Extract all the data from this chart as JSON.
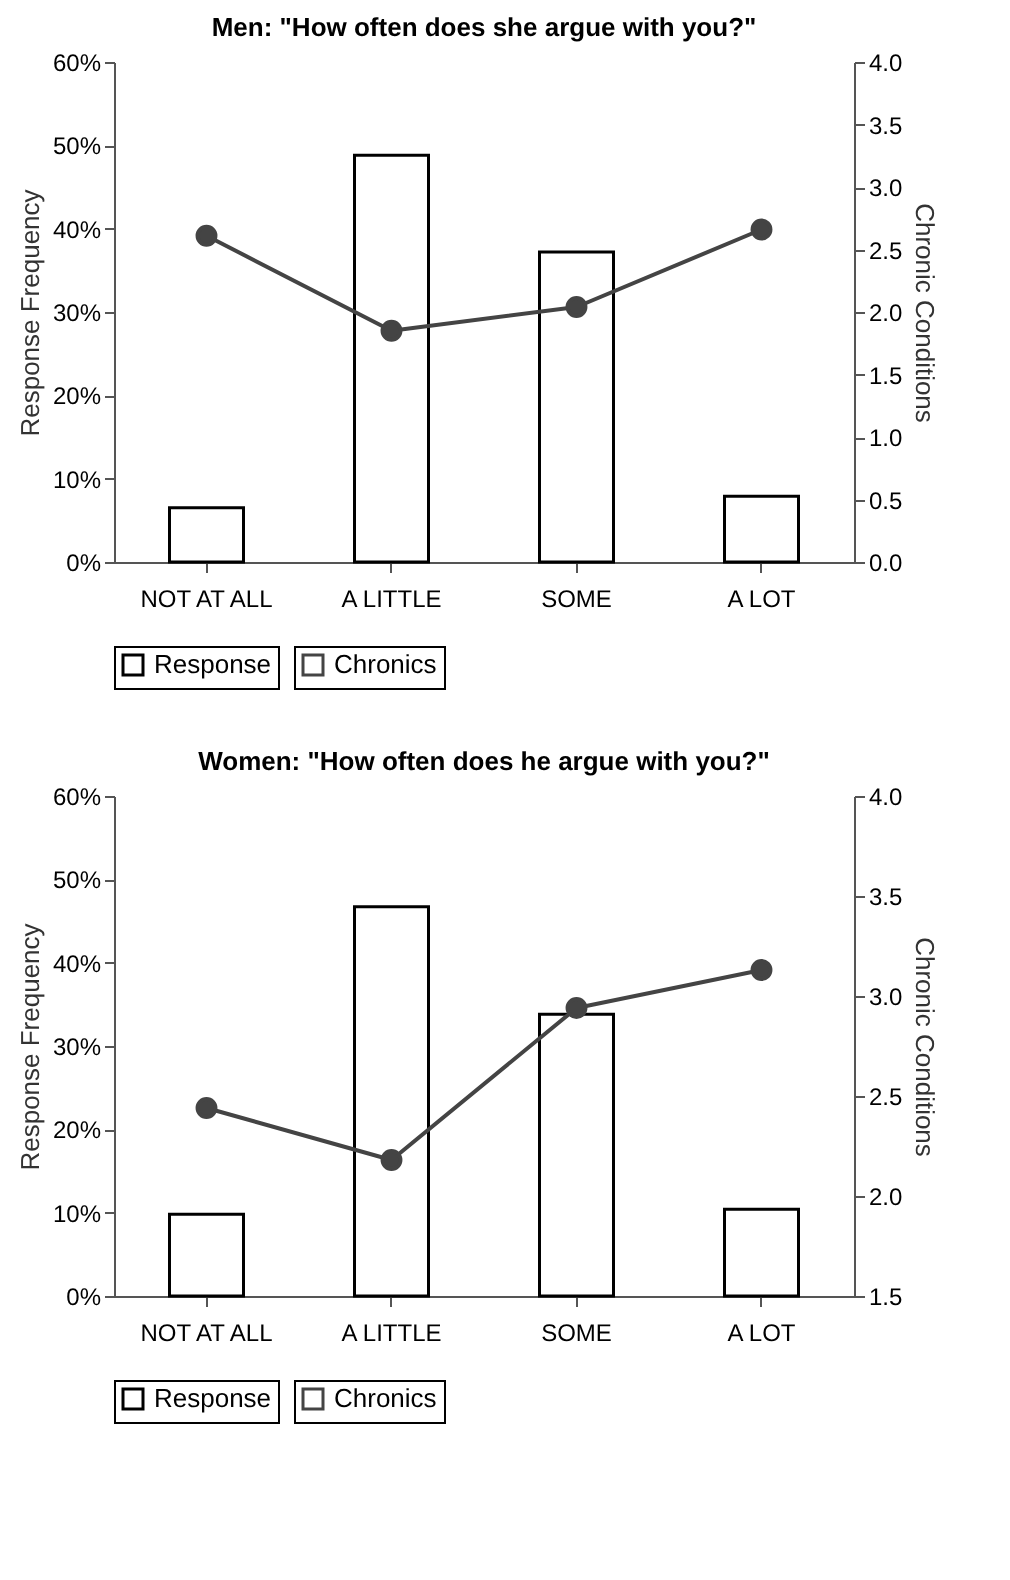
{
  "chart_data": [
    {
      "type": "bar",
      "title": "Men:  \"How often does she argue with you?\"",
      "ylabel": "Response Frequency",
      "y2label": "Chronic Conditions",
      "categories": [
        "NOT AT ALL",
        "A LITTLE",
        "SOME",
        "A LOT"
      ],
      "series": [
        {
          "name": "Response",
          "color": "#ffffff",
          "values": [
            6.5,
            48.8,
            37.2,
            7.9
          ]
        },
        {
          "name": "Chronics",
          "type": "line",
          "axis": "y2",
          "color": "#444444",
          "values": [
            2.61,
            1.85,
            2.04,
            2.66
          ]
        }
      ],
      "ylim": [
        0,
        60
      ],
      "yticks": [
        {
          "value": 0,
          "label": "0%"
        },
        {
          "value": 10,
          "label": "10%"
        },
        {
          "value": 20,
          "label": "20%"
        },
        {
          "value": 30,
          "label": "30%"
        },
        {
          "value": 40,
          "label": "40%"
        },
        {
          "value": 50,
          "label": "50%"
        },
        {
          "value": 60,
          "label": "60%"
        }
      ],
      "y2lim": [
        0,
        4
      ],
      "y2ticks": [
        {
          "value": 0,
          "label": "0.0"
        },
        0.5,
        {
          "value": 1,
          "label": "1.0"
        },
        1.5,
        {
          "value": 2,
          "label": "2.0"
        },
        2.5,
        {
          "value": 3,
          "label": "3.0"
        },
        3.5,
        {
          "value": 4,
          "label": "4.0"
        }
      ],
      "grid": false,
      "legend": "bottom",
      "marker": "circle"
    },
    {
      "type": "bar",
      "title": "Women:  \"How often does he argue with you?\"",
      "ylabel": "Response Frequency",
      "y2label": "Chronic Conditions",
      "categories": [
        "NOT AT ALL",
        "A LITTLE",
        "SOME",
        "A LOT"
      ],
      "series": [
        {
          "name": "Response",
          "color": "#ffffff",
          "values": [
            9.8,
            46.7,
            33.8,
            10.4
          ]
        },
        {
          "name": "Chronics",
          "type": "line",
          "axis": "y2",
          "color": "#444444",
          "values": [
            2.44,
            2.18,
            2.94,
            3.13
          ]
        }
      ],
      "ylim": [
        0,
        60
      ],
      "yticks": [
        {
          "value": 0,
          "label": "0%"
        },
        {
          "value": 10,
          "label": "10%"
        },
        {
          "value": 20,
          "label": "20%"
        },
        {
          "value": 30,
          "label": "30%"
        },
        {
          "value": 40,
          "label": "40%"
        },
        {
          "value": 50,
          "label": "50%"
        },
        {
          "value": 60,
          "label": "60%"
        }
      ],
      "y2lim": [
        1.5,
        4
      ],
      "y2ticks": [
        1.5,
        {
          "value": 2,
          "label": "2.0"
        },
        2.5,
        {
          "value": 3,
          "label": "3.0"
        },
        3.5,
        {
          "value": 4,
          "label": "4.0"
        }
      ],
      "grid": false,
      "legend": "bottom",
      "marker": "circle"
    }
  ]
}
